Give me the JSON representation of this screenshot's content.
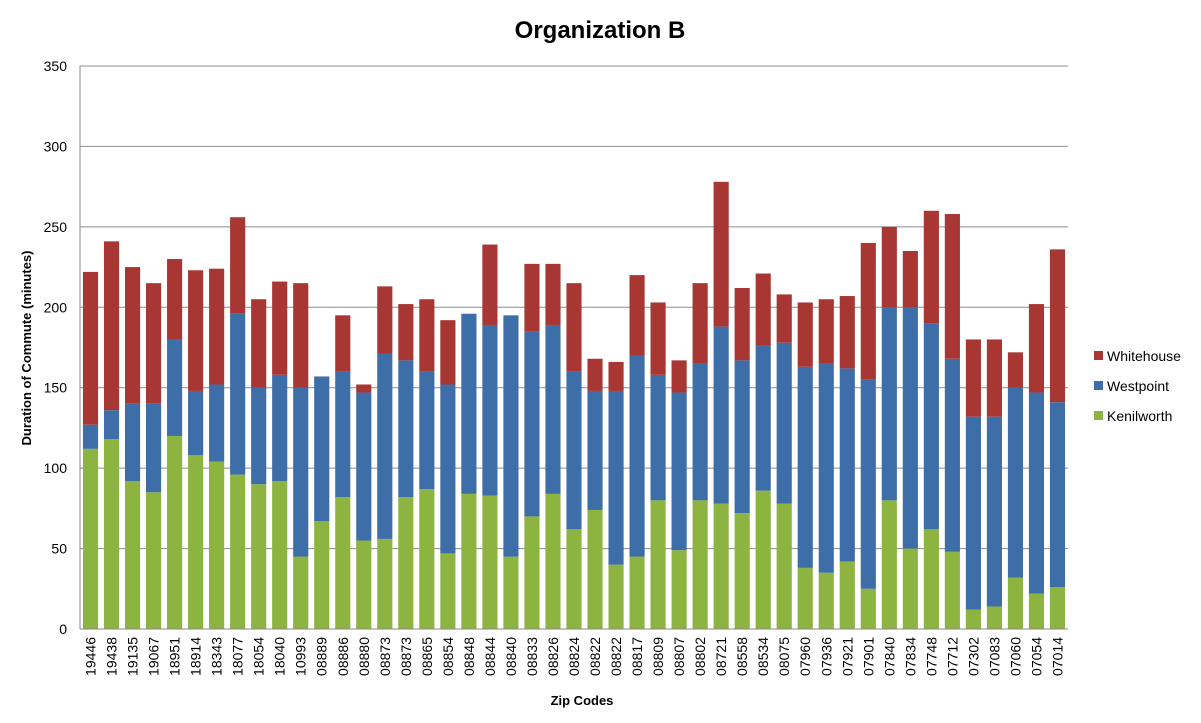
{
  "chart_data": {
    "type": "bar",
    "stacked": true,
    "title": "Organization B",
    "xlabel": "Zip Codes",
    "ylabel": "Duration of Commute (minutes)",
    "ylim": [
      0,
      350
    ],
    "yticks": [
      0,
      50,
      100,
      150,
      200,
      250,
      300,
      350
    ],
    "grid": true,
    "legend": "right",
    "categories": [
      "19446",
      "19438",
      "19135",
      "19067",
      "18951",
      "18914",
      "18343",
      "18077",
      "18054",
      "18040",
      "10993",
      "08889",
      "08886",
      "08880",
      "08873",
      "08873",
      "08865",
      "08854",
      "08848",
      "08844",
      "08840",
      "08833",
      "08826",
      "08824",
      "08822",
      "08822",
      "08817",
      "08809",
      "08807",
      "08802",
      "08721",
      "08558",
      "08534",
      "08075",
      "07960",
      "07936",
      "07921",
      "07901",
      "07840",
      "07834",
      "07748",
      "07712",
      "07302",
      "07083",
      "07060",
      "07054",
      "07014"
    ],
    "series": [
      {
        "name": "Kenilworth",
        "color": "#8db340",
        "values": [
          112,
          118,
          92,
          85,
          120,
          108,
          104,
          96,
          90,
          92,
          45,
          67,
          82,
          55,
          56,
          82,
          87,
          47,
          84,
          83,
          45,
          70,
          84,
          62,
          74,
          40,
          45,
          80,
          49,
          80,
          78,
          72,
          86,
          78,
          38,
          35,
          42,
          25,
          80,
          50,
          62,
          48,
          12,
          14,
          32,
          22,
          26
        ]
      },
      {
        "name": "Westpoint",
        "color": "#3e6ea7",
        "values": [
          15,
          18,
          48,
          55,
          60,
          40,
          48,
          100,
          60,
          66,
          105,
          90,
          78,
          92,
          115,
          85,
          73,
          105,
          112,
          106,
          150,
          115,
          105,
          98,
          74,
          108,
          125,
          78,
          98,
          85,
          110,
          95,
          90,
          100,
          125,
          130,
          120,
          130,
          120,
          150,
          128,
          120,
          120,
          118,
          118,
          125,
          115
        ]
      },
      {
        "name": "Whitehouse",
        "color": "#a83734",
        "values": [
          95,
          105,
          85,
          75,
          50,
          75,
          72,
          60,
          55,
          58,
          65,
          0,
          35,
          5,
          42,
          35,
          45,
          40,
          0,
          50,
          0,
          42,
          38,
          55,
          20,
          18,
          50,
          45,
          20,
          50,
          90,
          45,
          45,
          30,
          40,
          40,
          45,
          85,
          50,
          35,
          70,
          90,
          48,
          48,
          22,
          55,
          95
        ]
      }
    ]
  }
}
